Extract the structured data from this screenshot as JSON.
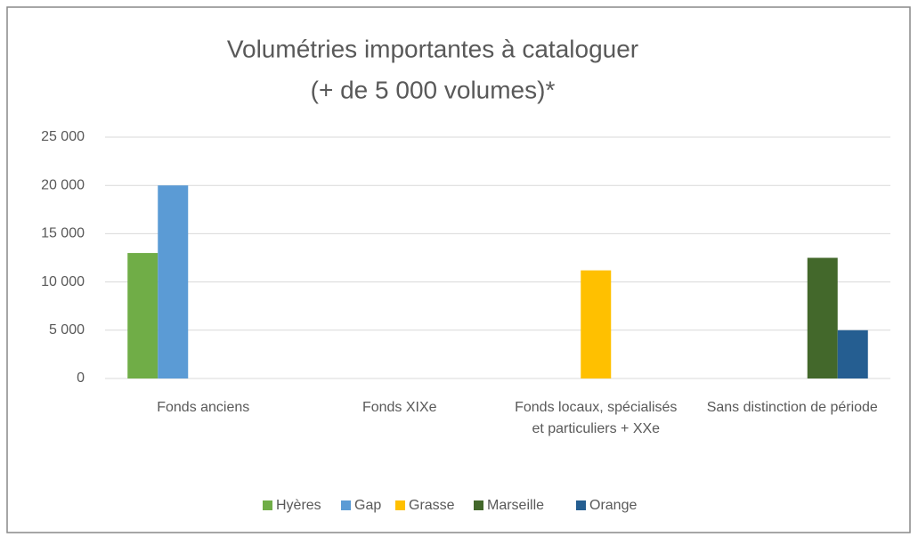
{
  "chart_data": {
    "type": "bar",
    "title": [
      "Volumétries importantes à cataloguer",
      "(+ de 5 000 volumes)*"
    ],
    "categories": [
      "Fonds anciens",
      "Fonds XIXe",
      "Fonds locaux, spécialisés et particuliers + XXe",
      "Sans distinction de période"
    ],
    "series": [
      {
        "name": "Hyères",
        "color": "#70ad47",
        "values": [
          13000,
          null,
          null,
          null
        ]
      },
      {
        "name": "Gap",
        "color": "#5b9bd5",
        "values": [
          20000,
          null,
          null,
          null
        ]
      },
      {
        "name": "Grasse",
        "color": "#ffc000",
        "values": [
          null,
          null,
          11200,
          null
        ]
      },
      {
        "name": "Marseille",
        "color": "#43682b",
        "values": [
          null,
          null,
          null,
          12500
        ]
      },
      {
        "name": "Orange",
        "color": "#255e91",
        "values": [
          null,
          null,
          null,
          5000
        ]
      }
    ],
    "ylim": [
      0,
      25000
    ],
    "yticks": [
      0,
      {
        "value": 5000,
        "label": "5 000"
      },
      {
        "value": 10000,
        "label": "10 000"
      },
      {
        "value": 15000,
        "label": "15 000"
      },
      {
        "value": 20000,
        "label": "20 000"
      },
      {
        "value": 25000,
        "label": "25 000"
      }
    ],
    "grid": true,
    "legend": "bottom"
  }
}
